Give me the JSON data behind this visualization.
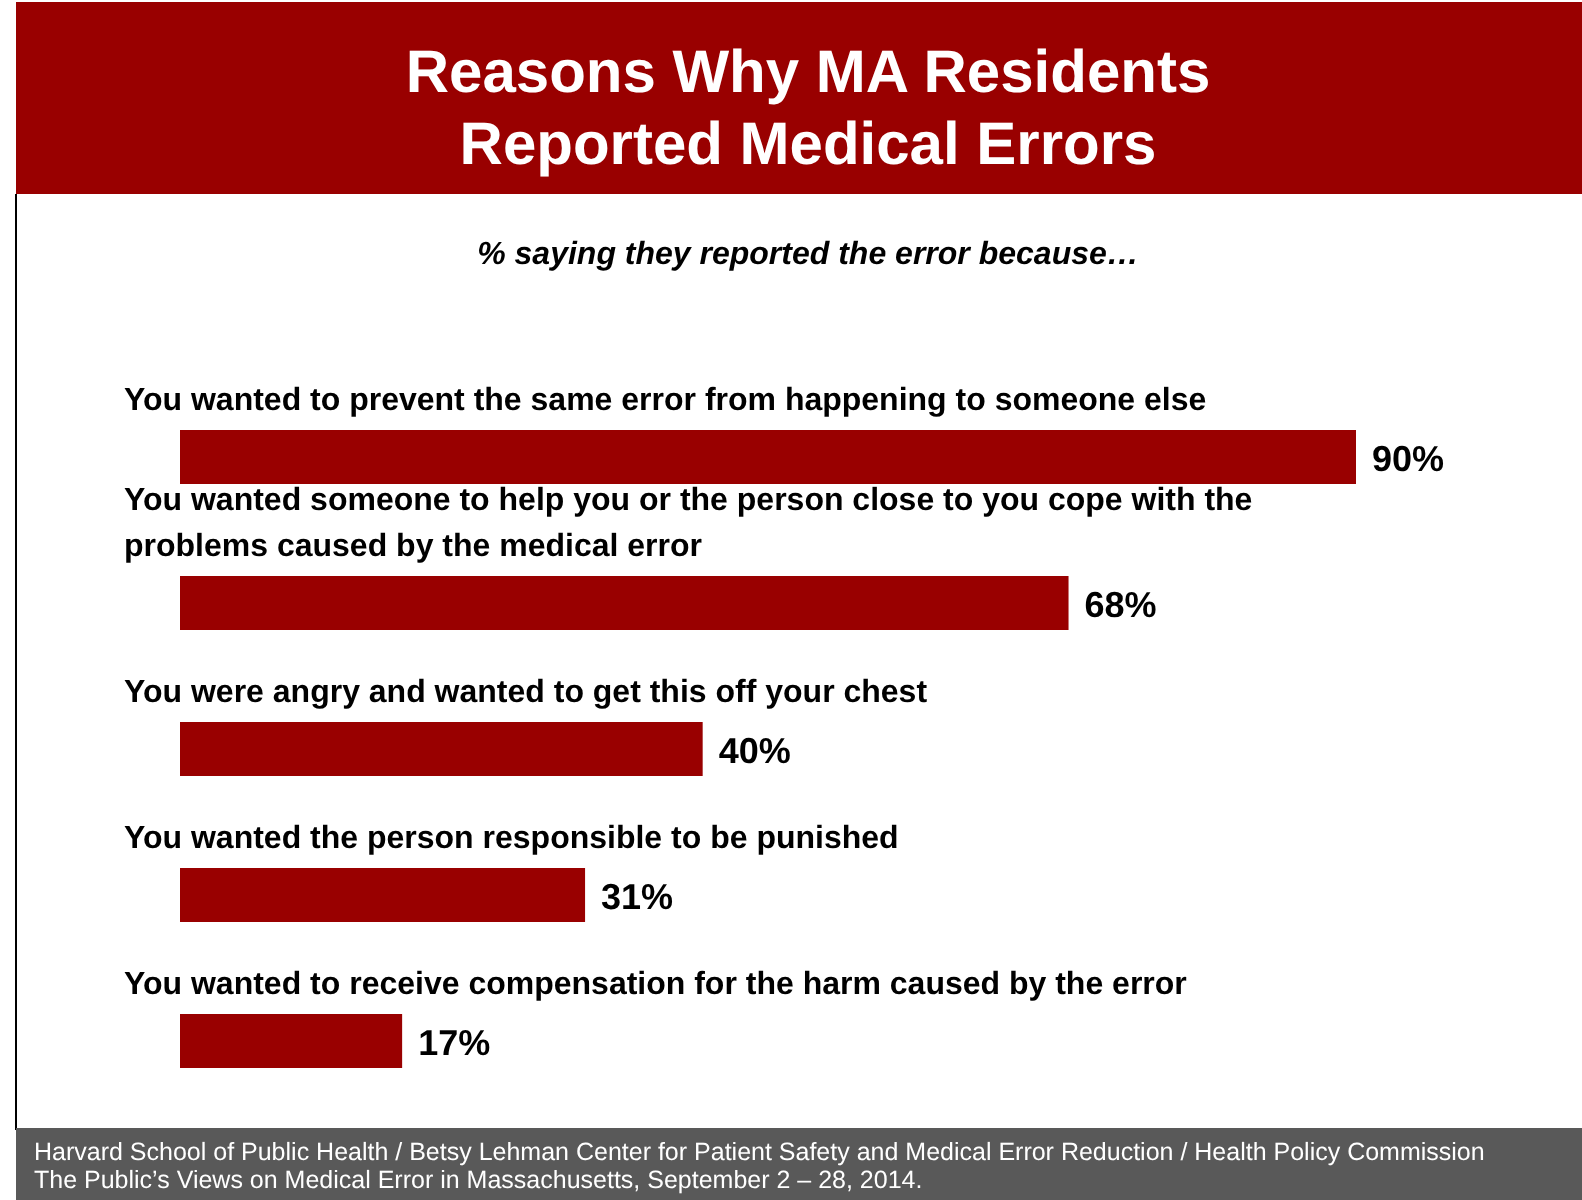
{
  "chart_data": {
    "type": "bar",
    "orientation": "horizontal",
    "title": "Reasons Why MA Residents Reported Medical Errors",
    "subtitle": "% saying they reported the error because…",
    "categories": [
      "You wanted to prevent the same error from happening to someone else",
      "You wanted someone to help you or the person close to you cope with the problems caused by the medical error",
      "You were angry and wanted to get this off your chest",
      "You wanted the person responsible to be punished",
      "You wanted to receive compensation for the harm caused by the error"
    ],
    "values": [
      90,
      68,
      40,
      31,
      17
    ],
    "value_labels": [
      "90%",
      "68%",
      "40%",
      "31%",
      "17%"
    ],
    "color": "#990000",
    "annotations": [
      "Harvard School of Public Health / Betsy Lehman Center for Patient Safety and Medical Error Reduction / Health Policy Commission",
      "The Public’s Views on Medical Error in Massachusetts, September 2 – 28, 2014."
    ]
  }
}
